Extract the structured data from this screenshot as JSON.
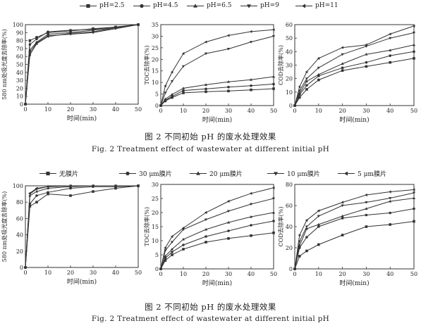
{
  "figures": [
    {
      "legend": [
        "pH=2.5",
        "pH=4.5",
        "pH=6.5",
        "pH=9",
        "pH=11"
      ],
      "caption_zh": "图 2    不同初始 pH 的废水处理效果",
      "caption_en": "Fig. 2    Treatment effect of wastewater at different initial pH",
      "markers": [
        "square",
        "circle",
        "triangle-up",
        "triangle-down",
        "triangle-left"
      ]
    },
    {
      "legend": [
        "无膜片",
        "30 μm膜片",
        "20 μm膜片",
        "10 μm膜片",
        "5 μm膜片"
      ],
      "caption_zh": "图 2    不同初始 pH 的废水处理效果",
      "caption_en": "Fig. 2    Treatment effect of wastewater at different initial pH",
      "markers": [
        "square",
        "circle",
        "triangle-up",
        "triangle-down",
        "triangle-left"
      ]
    }
  ],
  "chart_data": [
    {
      "type": "line",
      "figure": 1,
      "panel": 1,
      "xlabel": "时间(min)",
      "ylabel": "580 nm处吸光度去除率(%)",
      "xlim": [
        0,
        50
      ],
      "ylim": [
        0,
        100
      ],
      "xticks": [
        0,
        10,
        20,
        30,
        40,
        50
      ],
      "yticks": [
        0,
        10,
        20,
        30,
        40,
        50,
        60,
        70,
        80,
        90,
        100
      ],
      "x": [
        0,
        2,
        5,
        10,
        20,
        30,
        40,
        50
      ],
      "series": [
        {
          "name": "pH=2.5",
          "values": [
            0,
            80,
            84,
            90,
            92,
            95,
            97,
            100
          ]
        },
        {
          "name": "pH=4.5",
          "values": [
            0,
            75,
            82,
            91,
            93,
            94,
            97,
            100
          ]
        },
        {
          "name": "pH=6.5",
          "values": [
            0,
            68,
            78,
            88,
            90,
            93,
            96,
            100
          ]
        },
        {
          "name": "pH=9",
          "values": [
            0,
            65,
            77,
            86,
            88,
            90,
            95,
            100
          ]
        },
        {
          "name": "pH=11",
          "values": [
            0,
            62,
            76,
            85,
            89,
            91,
            96,
            100
          ]
        }
      ]
    },
    {
      "type": "line",
      "figure": 1,
      "panel": 2,
      "xlabel": "时间(min)",
      "ylabel": "TOC去除率(%)",
      "xlim": [
        0,
        50
      ],
      "ylim": [
        0,
        35
      ],
      "xticks": [
        0,
        10,
        20,
        30,
        40,
        50
      ],
      "yticks": [
        0,
        5,
        10,
        15,
        20,
        25,
        30,
        35
      ],
      "x": [
        0,
        2,
        5,
        10,
        20,
        30,
        40,
        50
      ],
      "series": [
        {
          "name": "pH=2.5",
          "values": [
            0,
            2,
            3.5,
            5.5,
            6,
            6.3,
            6.8,
            7.3
          ]
        },
        {
          "name": "pH=4.5",
          "values": [
            0,
            2.3,
            4,
            6.5,
            7.2,
            8,
            8.6,
            9.3
          ]
        },
        {
          "name": "pH=6.5",
          "values": [
            0,
            2.8,
            4.8,
            7.5,
            9,
            10.3,
            11.2,
            12.5
          ]
        },
        {
          "name": "pH=9",
          "values": [
            0,
            5.5,
            10.5,
            17,
            22.5,
            24.5,
            27.5,
            30
          ]
        },
        {
          "name": "pH=11",
          "values": [
            0,
            8.5,
            14.5,
            22.5,
            27.5,
            30.3,
            32,
            32.8
          ]
        }
      ]
    },
    {
      "type": "line",
      "figure": 1,
      "panel": 3,
      "xlabel": "时间(min)",
      "ylabel": "COD去除率(%)",
      "xlim": [
        0,
        50
      ],
      "ylim": [
        0,
        60
      ],
      "xticks": [
        0,
        10,
        20,
        30,
        40,
        50
      ],
      "yticks": [
        0,
        10,
        20,
        30,
        40,
        50,
        60
      ],
      "x": [
        0,
        2,
        5,
        10,
        20,
        30,
        40,
        50
      ],
      "series": [
        {
          "name": "pH=2.5",
          "values": [
            0,
            6,
            12,
            19,
            26,
            29,
            32,
            35
          ]
        },
        {
          "name": "pH=4.5",
          "values": [
            0,
            8,
            15,
            22,
            28,
            32,
            37,
            40
          ]
        },
        {
          "name": "pH=6.5",
          "values": [
            0,
            9,
            18,
            23,
            31,
            38,
            41,
            45
          ]
        },
        {
          "name": "pH=9",
          "values": [
            0,
            11,
            20,
            28,
            38,
            44,
            50,
            54
          ]
        },
        {
          "name": "pH=11",
          "values": [
            0,
            14,
            25,
            35,
            43,
            45,
            53,
            59
          ]
        }
      ]
    },
    {
      "type": "line",
      "figure": 2,
      "panel": 1,
      "xlabel": "时间(min)",
      "ylabel": "580 nm处吸光度去除率(%)",
      "xlim": [
        0,
        50
      ],
      "ylim": [
        0,
        100
      ],
      "xticks": [
        0,
        10,
        20,
        30,
        40,
        50
      ],
      "yticks": [
        0,
        20,
        40,
        60,
        80,
        100
      ],
      "x": [
        0,
        2,
        5,
        10,
        20,
        30,
        40,
        50
      ],
      "series": [
        {
          "name": "无膜片",
          "values": [
            0,
            75,
            80,
            90,
            88,
            93,
            97,
            100
          ]
        },
        {
          "name": "30 μm膜片",
          "values": [
            0,
            78,
            88,
            92,
            97,
            99,
            99,
            100
          ]
        },
        {
          "name": "20 μm膜片",
          "values": [
            0,
            88,
            93,
            97,
            99,
            100,
            100,
            100
          ]
        },
        {
          "name": "10 μm膜片",
          "values": [
            0,
            90,
            96,
            99,
            100,
            100,
            100,
            100
          ]
        },
        {
          "name": "5 μm膜片",
          "values": [
            0,
            91,
            97,
            99,
            100,
            100,
            100,
            100
          ]
        }
      ]
    },
    {
      "type": "line",
      "figure": 2,
      "panel": 2,
      "xlabel": "时间(min)",
      "ylabel": "TOC去除率(%)",
      "xlim": [
        0,
        50
      ],
      "ylim": [
        0,
        30
      ],
      "xticks": [
        0,
        10,
        20,
        30,
        40,
        50
      ],
      "yticks": [
        0,
        5,
        10,
        15,
        20,
        25,
        30
      ],
      "x": [
        0,
        2,
        5,
        10,
        20,
        30,
        40,
        50
      ],
      "series": [
        {
          "name": "无膜片",
          "values": [
            0,
            3,
            5,
            7,
            9.5,
            10.8,
            11.8,
            12.8
          ]
        },
        {
          "name": "30 μm膜片",
          "values": [
            0,
            3.8,
            6,
            8.5,
            11.5,
            13.5,
            15.5,
            17
          ]
        },
        {
          "name": "20 μm膜片",
          "values": [
            0,
            4.5,
            7,
            10.5,
            14,
            16.5,
            18.5,
            20
          ]
        },
        {
          "name": "10 μm膜片",
          "values": [
            0,
            6.5,
            9.5,
            14,
            17.5,
            20.5,
            23,
            25
          ]
        },
        {
          "name": "5 μm膜片",
          "values": [
            0,
            7.5,
            11.5,
            14.5,
            20,
            24,
            26.8,
            28.8
          ]
        }
      ]
    },
    {
      "type": "line",
      "figure": 2,
      "panel": 3,
      "xlabel": "时间(min)",
      "ylabel": "COD去除率(%)",
      "xlim": [
        0,
        50
      ],
      "ylim": [
        0,
        80
      ],
      "xticks": [
        0,
        10,
        20,
        30,
        40,
        50
      ],
      "yticks": [
        0,
        20,
        40,
        60,
        80
      ],
      "x": [
        0,
        2,
        5,
        10,
        20,
        30,
        40,
        50
      ],
      "series": [
        {
          "name": "无膜片",
          "values": [
            0,
            12,
            17,
            23,
            32,
            40,
            42,
            45
          ]
        },
        {
          "name": "30 μm膜片",
          "values": [
            0,
            20,
            30,
            40,
            48,
            51,
            53,
            57
          ]
        },
        {
          "name": "20 μm膜片",
          "values": [
            0,
            22,
            38,
            42,
            50,
            57,
            64,
            67
          ]
        },
        {
          "name": "10 μm膜片",
          "values": [
            0,
            26,
            40,
            50,
            60,
            63,
            67,
            72
          ]
        },
        {
          "name": "5 μm膜片",
          "values": [
            0,
            32,
            46,
            55,
            63,
            70,
            73,
            75
          ]
        }
      ]
    }
  ]
}
